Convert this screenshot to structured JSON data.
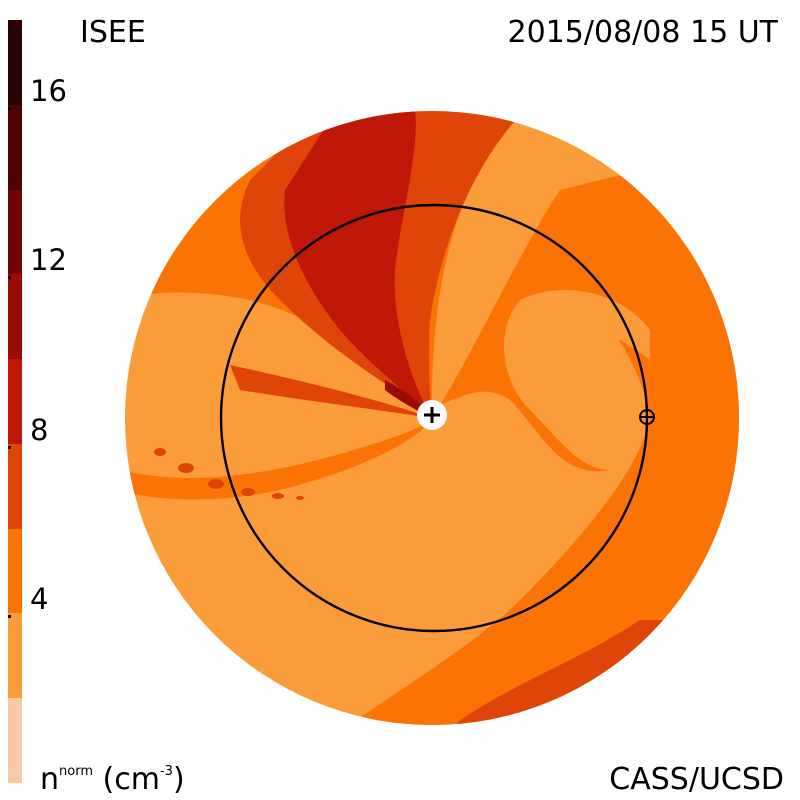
{
  "header": {
    "left_title": "ISEE",
    "right_title": "2015/08/08 15 UT"
  },
  "footer": {
    "units_main": "n",
    "units_sup": "norm",
    "units_paren": " (cm",
    "units_exp": "-3",
    "units_close": ")",
    "credit": "CASS/UCSD"
  },
  "colorbar": {
    "ticks": [
      {
        "label": "16",
        "value": 16
      },
      {
        "label": "12",
        "value": 12
      },
      {
        "label": "8",
        "value": 8
      },
      {
        "label": "4",
        "value": 4
      }
    ],
    "bands": [
      {
        "from": 0,
        "to": 2,
        "color": "#f8c9a4"
      },
      {
        "from": 2,
        "to": 4,
        "color": "#fb9c3a"
      },
      {
        "from": 4,
        "to": 6,
        "color": "#fb7305"
      },
      {
        "from": 6,
        "to": 8,
        "color": "#df4408"
      },
      {
        "from": 8,
        "to": 10,
        "color": "#bf1708"
      },
      {
        "from": 10,
        "to": 12,
        "color": "#9c0c06"
      },
      {
        "from": 12,
        "to": 14,
        "color": "#710505"
      },
      {
        "from": 14,
        "to": 16,
        "color": "#4c0302"
      },
      {
        "from": 16,
        "to": 18,
        "color": "#2a0201"
      }
    ],
    "range": [
      0,
      18
    ]
  },
  "map": {
    "sun_symbol": "+",
    "earth_symbol": "⊕",
    "colors": {
      "pale": "#fb9c3a",
      "orange": "#fb7305",
      "dark_orange": "#df4408",
      "red": "#bf1708",
      "dark_red": "#9c0c06",
      "orbit": "#000000"
    }
  }
}
